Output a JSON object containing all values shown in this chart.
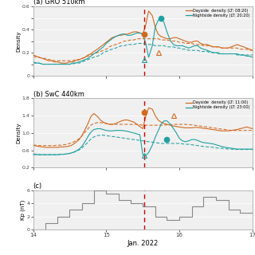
{
  "title_a": "(a) GRO 510km",
  "title_b": "(b) SwC 440km",
  "title_c": "(c)",
  "legend_a_day": "Dayside  density (LT: 08:20)",
  "legend_a_night": "Nightside density (LT: 20:20)",
  "legend_b_day": "Dayside  density (LT: 11:00)",
  "legend_b_night": "Nightside density (LT: 23:00)",
  "xlabel": "Jan. 2022",
  "ylabel_ab": "Density",
  "ylabel_c": "Kp (nT)",
  "xlim": [
    14,
    17
  ],
  "ylim_a": [
    0,
    0.6
  ],
  "ylim_b": [
    0.2,
    1.8
  ],
  "ylim_c": [
    0,
    6
  ],
  "vline_x": 15.52,
  "color_day": "#d2691e",
  "color_night": "#20a0a0",
  "color_kp": "#888888",
  "color_vline": "#cc0000",
  "xticks": [
    14,
    15,
    16,
    17
  ],
  "x_a": [
    14.0,
    14.04,
    14.08,
    14.13,
    14.17,
    14.21,
    14.25,
    14.29,
    14.33,
    14.38,
    14.42,
    14.46,
    14.5,
    14.54,
    14.58,
    14.63,
    14.67,
    14.71,
    14.75,
    14.79,
    14.83,
    14.88,
    14.92,
    14.96,
    15.0,
    15.04,
    15.08,
    15.13,
    15.17,
    15.21,
    15.25,
    15.29,
    15.33,
    15.38,
    15.42,
    15.46,
    15.5,
    15.54,
    15.58,
    15.63,
    15.67,
    15.71,
    15.75,
    15.79,
    15.83,
    15.88,
    15.92,
    15.96,
    16.0,
    16.04,
    16.08,
    16.13,
    16.17,
    16.21,
    16.25,
    16.29,
    16.33,
    16.38,
    16.42,
    16.46,
    16.5,
    16.54,
    16.58,
    16.63,
    16.67,
    16.71,
    16.75,
    16.79,
    16.83,
    16.88,
    16.92,
    16.96,
    17.0
  ],
  "day_a_solid": [
    0.18,
    0.17,
    0.16,
    0.15,
    0.14,
    0.13,
    0.13,
    0.12,
    0.12,
    0.11,
    0.11,
    0.11,
    0.12,
    0.12,
    0.13,
    0.14,
    0.15,
    0.16,
    0.18,
    0.19,
    0.21,
    0.23,
    0.25,
    0.27,
    0.29,
    0.31,
    0.33,
    0.34,
    0.35,
    0.35,
    0.36,
    0.36,
    0.37,
    0.38,
    0.38,
    0.37,
    0.36,
    0.44,
    0.56,
    0.52,
    0.42,
    0.36,
    0.34,
    0.33,
    0.32,
    0.32,
    0.33,
    0.33,
    0.32,
    0.31,
    0.3,
    0.29,
    0.29,
    0.3,
    0.3,
    0.28,
    0.27,
    0.27,
    0.26,
    0.25,
    0.25,
    0.25,
    0.24,
    0.24,
    0.24,
    0.25,
    0.26,
    0.27,
    0.26,
    0.25,
    0.24,
    0.23,
    0.22
  ],
  "night_a_solid": [
    0.12,
    0.11,
    0.11,
    0.1,
    0.1,
    0.1,
    0.1,
    0.1,
    0.1,
    0.1,
    0.1,
    0.1,
    0.1,
    0.11,
    0.11,
    0.12,
    0.13,
    0.14,
    0.15,
    0.17,
    0.19,
    0.21,
    0.23,
    0.25,
    0.28,
    0.3,
    0.32,
    0.34,
    0.35,
    0.36,
    0.36,
    0.35,
    0.35,
    0.36,
    0.37,
    0.37,
    0.36,
    0.28,
    0.16,
    0.26,
    0.42,
    0.48,
    0.5,
    0.46,
    0.38,
    0.3,
    0.27,
    0.26,
    0.26,
    0.26,
    0.25,
    0.24,
    0.25,
    0.26,
    0.26,
    0.24,
    0.23,
    0.22,
    0.21,
    0.2,
    0.2,
    0.19,
    0.19,
    0.19,
    0.19,
    0.19,
    0.19,
    0.19,
    0.18,
    0.18,
    0.17,
    0.17,
    0.16
  ],
  "day_a_dashed": [
    0.17,
    0.16,
    0.16,
    0.15,
    0.15,
    0.14,
    0.14,
    0.13,
    0.13,
    0.13,
    0.13,
    0.13,
    0.13,
    0.13,
    0.14,
    0.14,
    0.15,
    0.16,
    0.17,
    0.18,
    0.19,
    0.2,
    0.21,
    0.22,
    0.23,
    0.25,
    0.26,
    0.27,
    0.28,
    0.29,
    0.3,
    0.3,
    0.31,
    0.31,
    0.32,
    0.32,
    0.32,
    0.32,
    0.32,
    0.32,
    0.32,
    0.32,
    0.31,
    0.31,
    0.31,
    0.3,
    0.3,
    0.3,
    0.29,
    0.29,
    0.28,
    0.28,
    0.28,
    0.27,
    0.27,
    0.27,
    0.26,
    0.26,
    0.26,
    0.25,
    0.25,
    0.25,
    0.24,
    0.24,
    0.24,
    0.24,
    0.24,
    0.24,
    0.23,
    0.23,
    0.23,
    0.22,
    0.22
  ],
  "night_a_dashed": [
    0.11,
    0.11,
    0.11,
    0.1,
    0.1,
    0.1,
    0.1,
    0.1,
    0.1,
    0.1,
    0.1,
    0.1,
    0.1,
    0.1,
    0.11,
    0.11,
    0.12,
    0.13,
    0.14,
    0.15,
    0.16,
    0.17,
    0.18,
    0.2,
    0.21,
    0.22,
    0.23,
    0.24,
    0.25,
    0.26,
    0.26,
    0.27,
    0.27,
    0.27,
    0.28,
    0.28,
    0.28,
    0.27,
    0.27,
    0.27,
    0.26,
    0.26,
    0.26,
    0.26,
    0.25,
    0.25,
    0.25,
    0.24,
    0.24,
    0.23,
    0.23,
    0.22,
    0.22,
    0.22,
    0.22,
    0.21,
    0.21,
    0.21,
    0.2,
    0.2,
    0.2,
    0.2,
    0.19,
    0.19,
    0.19,
    0.19,
    0.19,
    0.18,
    0.18,
    0.18,
    0.18,
    0.18,
    0.18
  ],
  "x_b": [
    14.0,
    14.04,
    14.08,
    14.13,
    14.17,
    14.21,
    14.25,
    14.29,
    14.33,
    14.38,
    14.42,
    14.46,
    14.5,
    14.54,
    14.58,
    14.63,
    14.67,
    14.71,
    14.75,
    14.79,
    14.83,
    14.88,
    14.92,
    14.96,
    15.0,
    15.04,
    15.08,
    15.13,
    15.17,
    15.21,
    15.25,
    15.29,
    15.33,
    15.38,
    15.42,
    15.46,
    15.5,
    15.54,
    15.58,
    15.63,
    15.67,
    15.71,
    15.75,
    15.79,
    15.83,
    15.88,
    15.92,
    15.96,
    16.0,
    16.04,
    16.08,
    16.13,
    16.17,
    16.21,
    16.25,
    16.29,
    16.33,
    16.38,
    16.42,
    16.46,
    16.5,
    16.54,
    16.58,
    16.63,
    16.67,
    16.71,
    16.75,
    16.79,
    16.83,
    16.88,
    16.92,
    16.96,
    17.0
  ],
  "day_b_solid": [
    0.72,
    0.7,
    0.69,
    0.68,
    0.67,
    0.67,
    0.67,
    0.67,
    0.67,
    0.68,
    0.68,
    0.69,
    0.7,
    0.73,
    0.78,
    0.85,
    0.95,
    1.08,
    1.22,
    1.38,
    1.45,
    1.38,
    1.3,
    1.25,
    1.22,
    1.2,
    1.2,
    1.22,
    1.25,
    1.28,
    1.3,
    1.3,
    1.28,
    1.25,
    1.2,
    1.15,
    1.1,
    1.38,
    1.58,
    1.55,
    1.4,
    1.3,
    1.25,
    1.22,
    1.2,
    1.18,
    1.16,
    1.15,
    1.14,
    1.13,
    1.12,
    1.12,
    1.12,
    1.13,
    1.13,
    1.12,
    1.11,
    1.1,
    1.09,
    1.08,
    1.07,
    1.06,
    1.05,
    1.05,
    1.05,
    1.06,
    1.07,
    1.08,
    1.1,
    1.12,
    1.14,
    1.12,
    1.1
  ],
  "night_b_solid": [
    0.52,
    0.51,
    0.5,
    0.5,
    0.5,
    0.5,
    0.5,
    0.5,
    0.5,
    0.51,
    0.51,
    0.52,
    0.53,
    0.55,
    0.58,
    0.63,
    0.7,
    0.8,
    0.92,
    1.02,
    1.08,
    1.1,
    1.1,
    1.08,
    1.06,
    1.05,
    1.05,
    1.06,
    1.06,
    1.06,
    1.05,
    1.04,
    1.02,
    1.0,
    0.98,
    0.96,
    0.5,
    0.48,
    0.55,
    0.72,
    0.9,
    1.05,
    1.2,
    1.28,
    1.28,
    1.2,
    1.1,
    1.0,
    0.88,
    0.82,
    0.8,
    0.82,
    0.85,
    0.85,
    0.83,
    0.8,
    0.78,
    0.77,
    0.76,
    0.75,
    0.73,
    0.71,
    0.69,
    0.67,
    0.66,
    0.65,
    0.64,
    0.63,
    0.63,
    0.63,
    0.63,
    0.63,
    0.63
  ],
  "day_b_dashed": [
    0.72,
    0.72,
    0.71,
    0.71,
    0.71,
    0.71,
    0.71,
    0.71,
    0.72,
    0.72,
    0.73,
    0.74,
    0.76,
    0.78,
    0.82,
    0.87,
    0.94,
    1.02,
    1.1,
    1.18,
    1.22,
    1.24,
    1.24,
    1.23,
    1.22,
    1.21,
    1.2,
    1.2,
    1.2,
    1.2,
    1.2,
    1.2,
    1.2,
    1.2,
    1.2,
    1.19,
    1.18,
    1.18,
    1.18,
    1.18,
    1.18,
    1.18,
    1.18,
    1.18,
    1.19,
    1.19,
    1.2,
    1.2,
    1.2,
    1.2,
    1.2,
    1.19,
    1.19,
    1.18,
    1.17,
    1.16,
    1.15,
    1.14,
    1.13,
    1.12,
    1.11,
    1.1,
    1.09,
    1.08,
    1.07,
    1.06,
    1.06,
    1.06,
    1.06,
    1.06,
    1.06,
    1.06,
    1.06
  ],
  "night_b_dashed": [
    0.5,
    0.5,
    0.5,
    0.5,
    0.5,
    0.5,
    0.5,
    0.5,
    0.5,
    0.51,
    0.51,
    0.52,
    0.53,
    0.55,
    0.57,
    0.61,
    0.66,
    0.72,
    0.79,
    0.86,
    0.91,
    0.94,
    0.95,
    0.95,
    0.94,
    0.93,
    0.92,
    0.91,
    0.9,
    0.89,
    0.88,
    0.87,
    0.86,
    0.85,
    0.84,
    0.83,
    0.82,
    0.81,
    0.8,
    0.79,
    0.78,
    0.77,
    0.76,
    0.76,
    0.76,
    0.76,
    0.76,
    0.76,
    0.76,
    0.75,
    0.74,
    0.74,
    0.73,
    0.72,
    0.71,
    0.7,
    0.69,
    0.68,
    0.68,
    0.67,
    0.66,
    0.65,
    0.65,
    0.64,
    0.63,
    0.63,
    0.62,
    0.62,
    0.62,
    0.62,
    0.62,
    0.62,
    0.62
  ],
  "kp_steps": [
    [
      14.0,
      0.0
    ],
    [
      14.17,
      0.0
    ],
    [
      14.17,
      1.0
    ],
    [
      14.33,
      1.0
    ],
    [
      14.33,
      2.0
    ],
    [
      14.5,
      2.0
    ],
    [
      14.5,
      3.0
    ],
    [
      14.67,
      3.0
    ],
    [
      14.67,
      4.0
    ],
    [
      14.83,
      4.0
    ],
    [
      14.83,
      6.0
    ],
    [
      15.0,
      6.0
    ],
    [
      15.0,
      5.5
    ],
    [
      15.17,
      5.5
    ],
    [
      15.17,
      4.5
    ],
    [
      15.33,
      4.5
    ],
    [
      15.33,
      4.0
    ],
    [
      15.5,
      4.0
    ],
    [
      15.5,
      3.5
    ],
    [
      15.67,
      3.5
    ],
    [
      15.67,
      2.0
    ],
    [
      15.83,
      2.0
    ],
    [
      15.83,
      1.5
    ],
    [
      16.0,
      1.5
    ],
    [
      16.0,
      2.0
    ],
    [
      16.17,
      2.0
    ],
    [
      16.17,
      3.5
    ],
    [
      16.33,
      3.5
    ],
    [
      16.33,
      5.0
    ],
    [
      16.5,
      5.0
    ],
    [
      16.5,
      4.5
    ],
    [
      16.67,
      4.5
    ],
    [
      16.67,
      3.0
    ],
    [
      16.83,
      3.0
    ],
    [
      16.83,
      2.5
    ],
    [
      17.0,
      2.5
    ],
    [
      17.0,
      4.0
    ],
    [
      17.0,
      4.0
    ]
  ],
  "marker_day_a_x": 15.52,
  "marker_day_a_y": 0.36,
  "marker_night_a_x": 15.75,
  "marker_night_a_y": 0.5,
  "marker_tri_night_a_x": 15.52,
  "marker_tri_night_a_y": 0.135,
  "marker_tri_day_a_x": 15.72,
  "marker_tri_day_a_y": 0.2,
  "marker_day_b_x": 15.52,
  "marker_day_b_y": 1.47,
  "marker_night_b_x": 15.83,
  "marker_night_b_y": 0.86,
  "marker_tri_night_b_x": 15.52,
  "marker_tri_night_b_y": 0.49,
  "marker_tri_day_b_x": 15.92,
  "marker_tri_day_b_y": 1.4
}
